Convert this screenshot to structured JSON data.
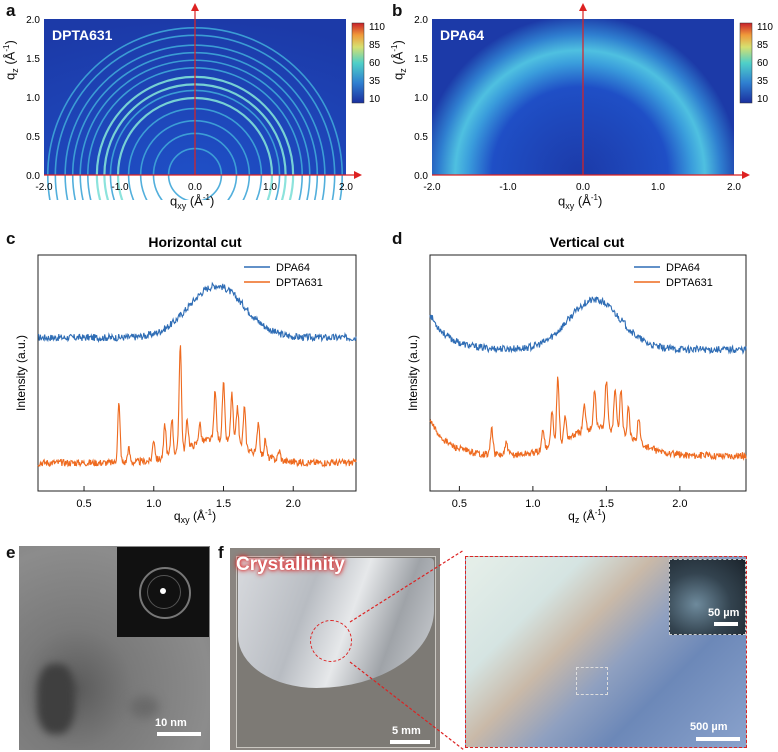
{
  "panels": {
    "a": {
      "letter": "a",
      "sample": "DPTA631",
      "colorbar_ticks": [
        "110",
        "85",
        "60",
        "35",
        "10"
      ],
      "y_label": "q",
      "y_sub": "z",
      "y_unit": " (Å",
      "y_unit_sup": "-1",
      "y_close": ")",
      "x_label": "q",
      "x_sub": "xy",
      "x_unit": " (Å",
      "x_unit_sup": "-1",
      "x_close": ")",
      "y_ticks": [
        "2.0",
        "1.5",
        "1.0",
        "0.5",
        "0.0"
      ],
      "x_ticks": [
        "-2.0",
        "-1.0",
        "0.0",
        "1.0",
        "2.0"
      ],
      "ring_radii": [
        0.35,
        0.55,
        0.72,
        0.88,
        1.02,
        1.12,
        1.2,
        1.3,
        1.42,
        1.52,
        1.62,
        1.72,
        1.85,
        1.95
      ],
      "colors": {
        "low": "#1a3fb3",
        "mid": "#3fb6d6",
        "high": "#e84a2a"
      }
    },
    "b": {
      "letter": "b",
      "sample": "DPA64",
      "colorbar_ticks": [
        "110",
        "85",
        "60",
        "35",
        "10"
      ],
      "y_label": "q",
      "y_sub": "z",
      "y_unit": " (Å",
      "y_unit_sup": "-1",
      "y_close": ")",
      "x_label": "q",
      "x_sub": "xy",
      "x_unit": " (Å",
      "x_unit_sup": "-1",
      "x_close": ")",
      "y_ticks": [
        "2.0",
        "1.5",
        "1.0",
        "0.5",
        "0.0"
      ],
      "x_ticks": [
        "-2.0",
        "-1.0",
        "0.0",
        "1.0",
        "2.0"
      ],
      "halo_center_q": 1.4
    },
    "c": {
      "letter": "c",
      "x_sub": "xy"
    },
    "d": {
      "letter": "d",
      "x_sub": "z"
    },
    "e": {
      "letter": "e",
      "scale_bar": "10 nm"
    },
    "f": {
      "letter": "f",
      "label": "Crystallinity",
      "scale_bar_left": "5 mm",
      "scale_bar_right": "500 µm",
      "scale_bar_inset": "50 µm"
    }
  },
  "chart_data": [
    {
      "type": "line",
      "title": "Horizontal cut",
      "xlabel": "q",
      "xlabel_sub": "xy",
      "xlabel_unit": " (Å",
      "xlabel_unit_sup": "-1",
      "xlabel_close": ")",
      "ylabel": "Intensity (a.u.)",
      "xlim": [
        0.17,
        2.45
      ],
      "ylim": [
        0,
        1
      ],
      "xticks": [
        0.5,
        1.0,
        1.5,
        2.0
      ],
      "xtick_labels": [
        "0.5",
        "1.0",
        "1.5",
        "2.0"
      ],
      "legend": [
        "DPA64",
        "DPTA631"
      ],
      "legend_position": "top-right",
      "series": [
        {
          "name": "DPA64",
          "color": "#2f6db5",
          "baseline": 0.65,
          "broad_peaks": [
            {
              "x": 1.45,
              "h": 0.22,
              "w": 0.28
            }
          ]
        },
        {
          "name": "DPTA631",
          "color": "#ee6a1f",
          "baseline": 0.12,
          "broad_peaks": [
            {
              "x": 1.45,
              "h": 0.1,
              "w": 0.3
            }
          ],
          "sharp_peaks": [
            [
              0.75,
              0.25
            ],
            [
              0.82,
              0.06
            ],
            [
              1.0,
              0.09
            ],
            [
              1.08,
              0.14
            ],
            [
              1.13,
              0.16
            ],
            [
              1.19,
              0.46
            ],
            [
              1.24,
              0.12
            ],
            [
              1.33,
              0.08
            ],
            [
              1.44,
              0.2
            ],
            [
              1.5,
              0.24
            ],
            [
              1.56,
              0.2
            ],
            [
              1.6,
              0.16
            ],
            [
              1.65,
              0.17
            ],
            [
              1.75,
              0.14
            ],
            [
              1.8,
              0.07
            ],
            [
              1.9,
              0.04
            ]
          ]
        }
      ]
    },
    {
      "type": "line",
      "title": "Vertical cut",
      "xlabel": "q",
      "xlabel_sub": "z",
      "xlabel_unit": " (Å",
      "xlabel_unit_sup": "-1",
      "xlabel_close": ")",
      "ylabel": "Intensity (a.u.)",
      "xlim": [
        0.3,
        2.45
      ],
      "ylim": [
        0,
        1
      ],
      "xticks": [
        0.5,
        1.0,
        1.5,
        2.0
      ],
      "xtick_labels": [
        "0.5",
        "1.0",
        "1.5",
        "2.0"
      ],
      "legend": [
        "DPA64",
        "DPTA631"
      ],
      "legend_position": "top-right",
      "series": [
        {
          "name": "DPA64",
          "color": "#2f6db5",
          "baseline": 0.6,
          "start_rise": 0.15,
          "broad_peaks": [
            {
              "x": 1.42,
              "h": 0.21,
              "w": 0.25
            }
          ]
        },
        {
          "name": "DPTA631",
          "color": "#ee6a1f",
          "baseline": 0.15,
          "start_rise": 0.15,
          "broad_peaks": [
            {
              "x": 1.45,
              "h": 0.12,
              "w": 0.3
            }
          ],
          "sharp_peaks": [
            [
              0.72,
              0.11
            ],
            [
              0.82,
              0.05
            ],
            [
              1.07,
              0.09
            ],
            [
              1.13,
              0.15
            ],
            [
              1.17,
              0.29
            ],
            [
              1.22,
              0.1
            ],
            [
              1.35,
              0.1
            ],
            [
              1.42,
              0.16
            ],
            [
              1.5,
              0.2
            ],
            [
              1.56,
              0.18
            ],
            [
              1.6,
              0.19
            ],
            [
              1.65,
              0.12
            ],
            [
              1.72,
              0.11
            ]
          ]
        }
      ]
    }
  ]
}
